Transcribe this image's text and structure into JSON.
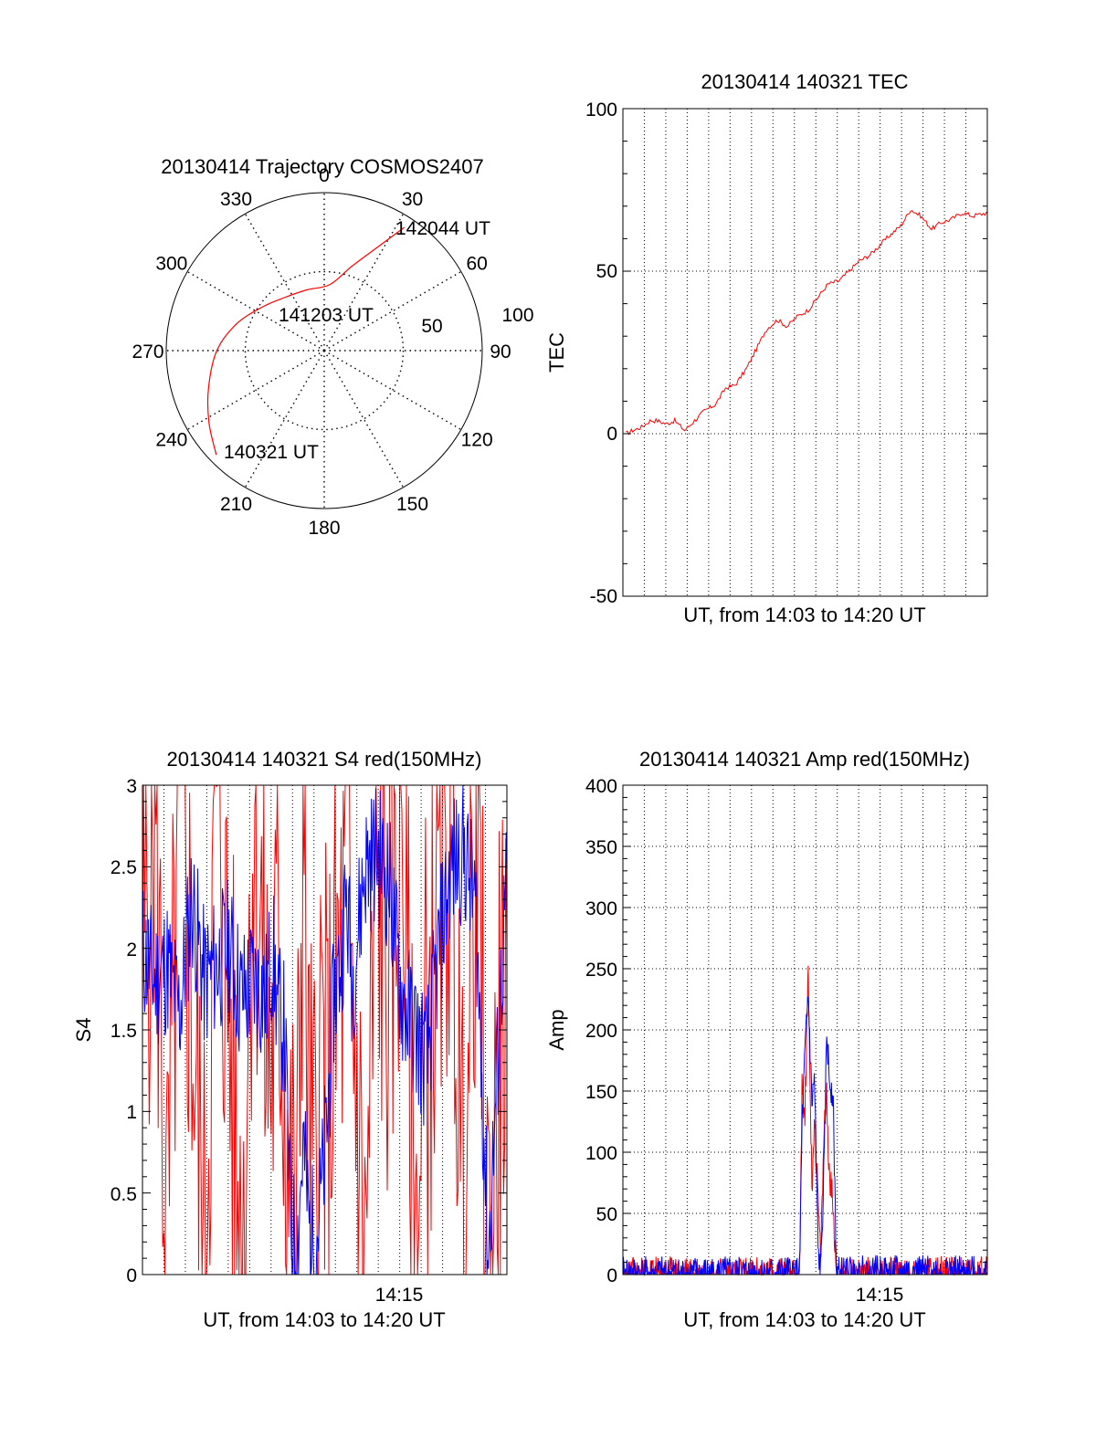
{
  "panels": {
    "polar": {
      "title": "20130414 Trajectory COSMOS2407",
      "azimuth_labels": [
        "0",
        "30",
        "60",
        "90",
        "120",
        "150",
        "180",
        "210",
        "240",
        "270",
        "300",
        "330"
      ],
      "azimuths_deg": [
        0,
        30,
        60,
        90,
        120,
        150,
        180,
        210,
        240,
        270,
        300,
        330
      ],
      "radius_labels": [
        "50",
        "100"
      ],
      "start_label": "140321 UT",
      "mid_label": "141203 UT",
      "end_label": "142044 UT"
    },
    "tec": {
      "title": "20130414 140321 TEC",
      "ylabel": "TEC",
      "xlabel": "UT, from 14:03 to 14:20 UT",
      "yticks": [
        "100",
        "50",
        "0",
        "-50"
      ]
    },
    "s4": {
      "title": "20130414 140321 S4 red(150MHz)",
      "ylabel": "S4",
      "xlabel": "UT, from 14:03 to 14:20 UT",
      "xtick": "14:15",
      "yticks": [
        "3",
        "2.5",
        "2",
        "1.5",
        "1",
        "0.5",
        "0"
      ]
    },
    "amp": {
      "title": "20130414 140321 Amp red(150MHz)",
      "ylabel": "Amp",
      "xlabel": "UT, from 14:03 to 14:20 UT",
      "xtick": "14:15",
      "yticks": [
        "400",
        "350",
        "300",
        "250",
        "200",
        "150",
        "100",
        "50",
        "0"
      ]
    }
  },
  "colors": {
    "red": "#ff0000",
    "blue": "#0000ff",
    "axis": "#000000"
  },
  "chart_data": [
    {
      "type": "scatter",
      "title": "20130414 Trajectory COSMOS2407",
      "coordinate_system": "polar (azimuth deg clockwise from north, zenith-distance radius)",
      "rlim": [
        0,
        100
      ],
      "series": [
        {
          "color": "red",
          "points": [
            {
              "az": 226,
              "r": 95
            },
            {
              "az": 238,
              "r": 86
            },
            {
              "az": 252,
              "r": 77
            },
            {
              "az": 270,
              "r": 68
            },
            {
              "az": 287,
              "r": 58
            },
            {
              "az": 305,
              "r": 48
            },
            {
              "az": 323,
              "r": 42
            },
            {
              "az": 344,
              "r": 40
            },
            {
              "az": 5,
              "r": 42
            },
            {
              "az": 18,
              "r": 56
            },
            {
              "az": 27,
              "r": 73
            },
            {
              "az": 33,
              "r": 93
            }
          ]
        }
      ],
      "annotations": [
        {
          "text": "140321 UT",
          "az": 226,
          "r": 95
        },
        {
          "text": "141203 UT",
          "az": 305,
          "r": 48
        },
        {
          "text": "142044 UT",
          "az": 33,
          "r": 93
        }
      ]
    },
    {
      "type": "line",
      "title": "20130414 140321 TEC",
      "ylabel": "TEC",
      "xlabel": "UT, from 14:03 to 14:20 UT",
      "xlim": [
        14.05,
        14.345
      ],
      "ylim": [
        -50,
        100
      ],
      "grid": true,
      "x": [
        14.0525,
        14.058,
        14.065,
        14.072,
        14.078,
        14.085,
        14.092,
        14.1,
        14.108,
        14.116,
        14.125,
        14.133,
        14.141,
        14.15,
        14.158,
        14.166,
        14.175,
        14.183,
        14.191,
        14.2,
        14.208,
        14.216,
        14.225,
        14.233,
        14.241,
        14.25,
        14.258,
        14.266,
        14.275,
        14.283,
        14.291,
        14.3,
        14.308,
        14.316,
        14.325,
        14.333,
        14.3455
      ],
      "series": [
        {
          "color": "red",
          "values": [
            0,
            1,
            2,
            4,
            4,
            3,
            4,
            1,
            4,
            7,
            9,
            14,
            15,
            20,
            26,
            32,
            35,
            33,
            36,
            38,
            42,
            46,
            47,
            50,
            53,
            55,
            58,
            61,
            64,
            69,
            67,
            63,
            65,
            66,
            68,
            67,
            68
          ]
        }
      ]
    },
    {
      "type": "line",
      "title": "20130414 140321 S4 red(150MHz)",
      "ylabel": "S4",
      "xlabel": "UT, from 14:03 to 14:20 UT",
      "xlim": [
        14.05,
        14.345
      ],
      "ylim": [
        0,
        3
      ],
      "xticks": [
        "14:15"
      ],
      "x": [
        14.05,
        14.06,
        14.07,
        14.08,
        14.09,
        14.1,
        14.11,
        14.12,
        14.13,
        14.14,
        14.15,
        14.155,
        14.16,
        14.165,
        14.17,
        14.175,
        14.18,
        14.185,
        14.19,
        14.195,
        14.2,
        14.205,
        14.21,
        14.215,
        14.22,
        14.23,
        14.24,
        14.25,
        14.26,
        14.27,
        14.28,
        14.29,
        14.3,
        14.31,
        14.32,
        14.33,
        14.345
      ],
      "series": [
        {
          "color": "blue",
          "values": [
            2.0,
            1.8,
            1.9,
            1.6,
            2.3,
            1.8,
            1.9,
            2.0,
            1.7,
            1.8,
            1.7,
            2.0,
            1.6,
            1.5,
            0.3,
            0.15,
            0.8,
            0.3,
            0.2,
            0.5,
            1.0,
            1.7,
            1.9,
            2.3,
            1.8,
            2.5,
            2.6,
            2.4,
            1.7,
            1.5,
            1.3,
            2.0,
            2.5,
            2.6,
            2.2,
            0.1,
            2.5
          ]
        },
        {
          "color": "red",
          "values": [
            1.8,
            3.0,
            0.0,
            3.0,
            1.7,
            0.0,
            3.0,
            1.6,
            0.0,
            3.0,
            1.5,
            1.3,
            2.0,
            1.3,
            0.4,
            0.2,
            3.0,
            0.7,
            0.5,
            1.5,
            0.9,
            1.6,
            1.8,
            2.2,
            1.7,
            0.0,
            2.4,
            1.8,
            3.0,
            0.0,
            1.5,
            2.2,
            3.0,
            0.0,
            3.0,
            0.0,
            2.0
          ]
        }
      ]
    },
    {
      "type": "line",
      "title": "20130414 140321 Amp red(150MHz)",
      "ylabel": "Amp",
      "xlabel": "UT, from 14:03 to 14:20 UT",
      "xlim": [
        14.05,
        14.345
      ],
      "ylim": [
        0,
        400
      ],
      "grid": true,
      "xticks": [
        "14:15"
      ],
      "x": [
        14.05,
        14.1,
        14.14,
        14.193,
        14.195,
        14.197,
        14.2,
        14.203,
        14.205,
        14.208,
        14.21,
        14.213,
        14.215,
        14.217,
        14.22,
        14.223,
        14.226,
        14.23,
        14.25,
        14.3,
        14.345
      ],
      "series": [
        {
          "color": "red",
          "values": [
            0,
            0,
            0,
            0,
            150,
            120,
            250,
            70,
            130,
            60,
            10,
            120,
            150,
            80,
            60,
            0,
            0,
            0,
            0,
            0,
            0
          ]
        },
        {
          "color": "blue",
          "values": [
            0,
            0,
            0,
            0,
            120,
            170,
            230,
            140,
            160,
            20,
            0,
            90,
            200,
            160,
            150,
            0,
            0,
            0,
            1,
            1,
            0
          ]
        }
      ]
    }
  ]
}
